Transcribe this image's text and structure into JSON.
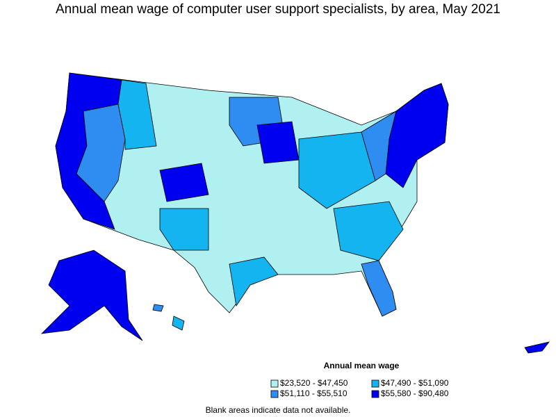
{
  "title": "Annual mean wage of computer user support specialists, by area, May 2021",
  "legend": {
    "title": "Annual mean wage",
    "items": [
      {
        "label": "$23,520 - $47,450",
        "color": "#b0f0f0"
      },
      {
        "label": "$47,490 - $51,090",
        "color": "#14b4f0"
      },
      {
        "label": "$51,110 - $55,510",
        "color": "#2f8cf0"
      },
      {
        "label": "$55,580 - $90,480",
        "color": "#0000f0"
      }
    ]
  },
  "footnote": "Blank areas indicate data not available."
}
